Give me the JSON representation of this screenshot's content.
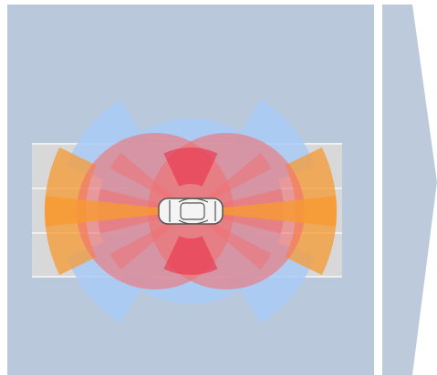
{
  "colors": {
    "panel": "#b9c8da",
    "arrow": "#bccadc",
    "road": "#d8d8d8",
    "lane_line": "#f0f0f0",
    "blue_sensor": "#a9cbf6",
    "red_sensor": "#f16f6f",
    "orange_sensor": "#f79a32",
    "car_body": "#f4f4f4",
    "car_outline": "#555555"
  },
  "icons": {
    "vehicle": "car-top-view-icon",
    "next": "chevron-right-icon"
  }
}
